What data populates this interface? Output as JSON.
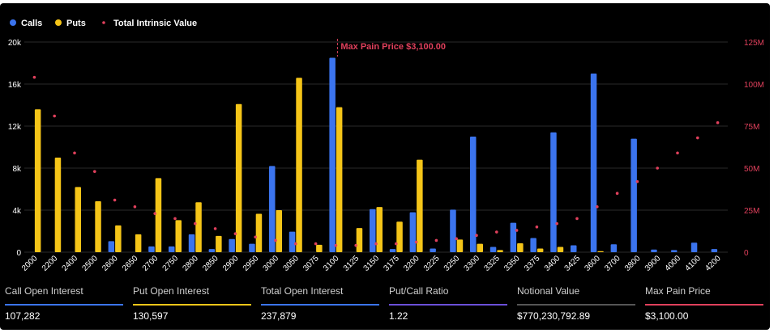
{
  "colors": {
    "calls": "#3b74ee",
    "puts": "#f5c518",
    "intrinsic": "#e0405c",
    "max_pain": "#e0405c",
    "put_call": "#6a4fd8",
    "notional": "#555555"
  },
  "legend": {
    "calls": "Calls",
    "puts": "Puts",
    "intrinsic": "Total Intrinsic Value"
  },
  "max_pain_label": "Max Pain Price $3,100.00",
  "chart_data": {
    "type": "bar",
    "categories": [
      "2000",
      "2200",
      "2400",
      "2500",
      "2600",
      "2650",
      "2700",
      "2750",
      "2800",
      "2850",
      "2900",
      "2950",
      "3000",
      "3050",
      "3075",
      "3100",
      "3125",
      "3150",
      "3175",
      "3200",
      "3225",
      "3250",
      "3300",
      "3325",
      "3350",
      "3375",
      "3400",
      "3425",
      "3600",
      "3700",
      "3800",
      "3900",
      "4000",
      "4100",
      "4200"
    ],
    "series": [
      {
        "name": "Calls",
        "axis": "left",
        "values": [
          0,
          0,
          0,
          0,
          1050,
          0,
          550,
          550,
          1700,
          300,
          1250,
          800,
          8200,
          1950,
          0,
          18500,
          0,
          4100,
          300,
          3800,
          350,
          4050,
          11000,
          500,
          2800,
          1350,
          11400,
          650,
          17000,
          750,
          10800,
          250,
          200,
          900,
          300
        ]
      },
      {
        "name": "Puts",
        "axis": "left",
        "values": [
          13600,
          9000,
          6200,
          4850,
          2550,
          1700,
          7050,
          3050,
          4750,
          1550,
          14100,
          3650,
          4000,
          16600,
          700,
          13800,
          2300,
          4300,
          2900,
          8800,
          0,
          1200,
          800,
          200,
          850,
          350,
          500,
          0,
          100,
          0,
          0,
          0,
          0,
          0,
          0
        ]
      },
      {
        "name": "Total Intrinsic Value",
        "axis": "right",
        "type": "scatter",
        "values": [
          104000,
          81000,
          59000,
          48000,
          31000,
          27000,
          23000,
          20000,
          17000,
          14000,
          11000,
          9000,
          7000,
          5000,
          5000,
          4000,
          4000,
          5000,
          5000,
          6000,
          7000,
          8000,
          10000,
          12000,
          13000,
          15000,
          17000,
          20000,
          27000,
          35000,
          42000,
          50000,
          59000,
          68000,
          77000
        ]
      }
    ],
    "y_left": {
      "ylim": [
        0,
        20000
      ],
      "ticks": [
        "0",
        "4k",
        "8k",
        "12k",
        "16k",
        "20k"
      ]
    },
    "y_right": {
      "ylim": [
        0,
        125000
      ],
      "ticks": [
        "0",
        "25M",
        "50M",
        "75M",
        "100M",
        "125M"
      ]
    },
    "max_pain_category": "3100",
    "grid": true,
    "legend_position": "top-left"
  },
  "stats": [
    {
      "label": "Call Open Interest",
      "value": "107,282",
      "color": "#3b74ee"
    },
    {
      "label": "Put Open Interest",
      "value": "130,597",
      "color": "#f5c518"
    },
    {
      "label": "Total Open Interest",
      "value": "237,879",
      "color": "#3b74ee"
    },
    {
      "label": "Put/Call Ratio",
      "value": "1.22",
      "color": "#6a4fd8"
    },
    {
      "label": "Notional Value",
      "value": "$770,230,792.89",
      "color": "#555555"
    },
    {
      "label": "Max Pain Price",
      "value": "$3,100.00",
      "color": "#e0405c"
    }
  ]
}
